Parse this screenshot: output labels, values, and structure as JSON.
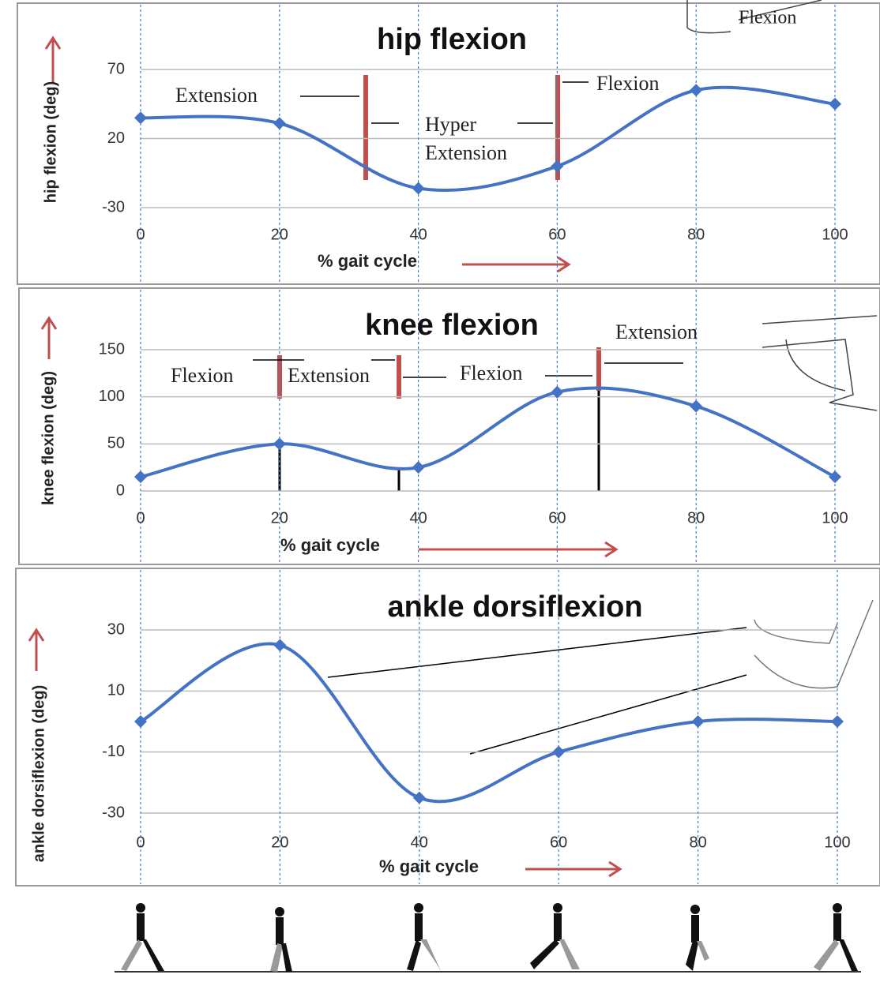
{
  "chart_data": [
    {
      "type": "line",
      "title": "hip flexion",
      "y_label": "hip flexion (deg)",
      "x_label": "% gait cycle",
      "x": [
        0,
        20,
        40,
        60,
        80,
        100
      ],
      "xlim": [
        0,
        100
      ],
      "xticks": [
        0,
        20,
        40,
        60,
        80,
        100
      ],
      "ylim": [
        -30,
        70
      ],
      "yticks": [
        -30,
        20,
        70
      ],
      "grid": true,
      "series": [
        {
          "color": "#4472c4",
          "values": [
            35,
            31,
            -16,
            0,
            55,
            45
          ]
        }
      ],
      "annotations": [
        "Extension",
        "Hyper",
        "Extension",
        "Flexion",
        "Flexion"
      ]
    },
    {
      "type": "line",
      "title": "knee flexion",
      "y_label": "knee flexion (deg)",
      "x_label": "% gait cycle",
      "x": [
        0,
        20,
        40,
        60,
        80,
        100
      ],
      "xlim": [
        0,
        100
      ],
      "xticks": [
        0,
        20,
        40,
        60,
        80,
        100
      ],
      "ylim": [
        0,
        150
      ],
      "yticks": [
        0,
        50,
        100,
        150
      ],
      "grid": true,
      "series": [
        {
          "color": "#4472c4",
          "values": [
            15,
            50,
            25,
            105,
            90,
            15
          ]
        }
      ],
      "annotations": [
        "Flexion",
        "Extension",
        "Flexion",
        "Extension"
      ]
    },
    {
      "type": "line",
      "title": "ankle dorsiflexion",
      "y_label": "ankle dorsiflexion (deg)",
      "x_label": "% gait cycle",
      "x": [
        0,
        20,
        40,
        60,
        80,
        100
      ],
      "xlim": [
        0,
        100
      ],
      "xticks": [
        0,
        20,
        40,
        60,
        80,
        100
      ],
      "ylim": [
        -30,
        30
      ],
      "yticks": [
        -30,
        -10,
        10,
        30
      ],
      "grid": true,
      "series": [
        {
          "color": "#4472c4",
          "values": [
            0,
            25,
            -25,
            -10,
            0,
            0
          ]
        }
      ],
      "annotations": []
    }
  ]
}
